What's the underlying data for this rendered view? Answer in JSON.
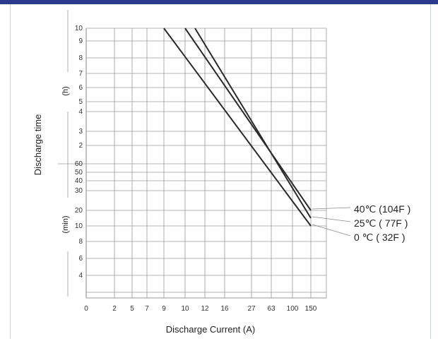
{
  "colors": {
    "header_bar": "#2b3a8c",
    "grid": "#9a9a9a",
    "line": "#2a2a2a",
    "background": "#ffffff"
  },
  "chart_data": {
    "type": "line",
    "xlabel": "Discharge Current (A)",
    "ylabel": "Discharge time",
    "x_tick_labels": [
      "0",
      "2",
      "5",
      "7",
      "9",
      "10",
      "12",
      "16",
      "27",
      "63",
      "100",
      "150"
    ],
    "y_tick_labels_hours": [
      "10",
      "9",
      "8",
      "7",
      "6",
      "5",
      "4",
      "3",
      "2"
    ],
    "y_tick_labels_minutes": [
      "60",
      "50",
      "40",
      "30",
      "20",
      "10",
      "8",
      "6",
      "4"
    ],
    "y_unit_labels": {
      "hours": "(h)",
      "minutes": "(min)"
    },
    "grid": true,
    "legend_placement": "right",
    "series": [
      {
        "name": "40℃ (104F )",
        "points": [
          {
            "x": "10",
            "y": "10 h"
          },
          {
            "x": "150",
            "y": "20 min"
          }
        ]
      },
      {
        "name": "25℃ ( 77F )",
        "points": [
          {
            "x": "11",
            "y": "10 h"
          },
          {
            "x": "150",
            "y": "15 min"
          }
        ]
      },
      {
        "name": "0 ℃ ( 32F )",
        "points": [
          {
            "x": "9",
            "y": "10 h"
          },
          {
            "x": "150",
            "y": "10 min"
          }
        ]
      }
    ]
  }
}
